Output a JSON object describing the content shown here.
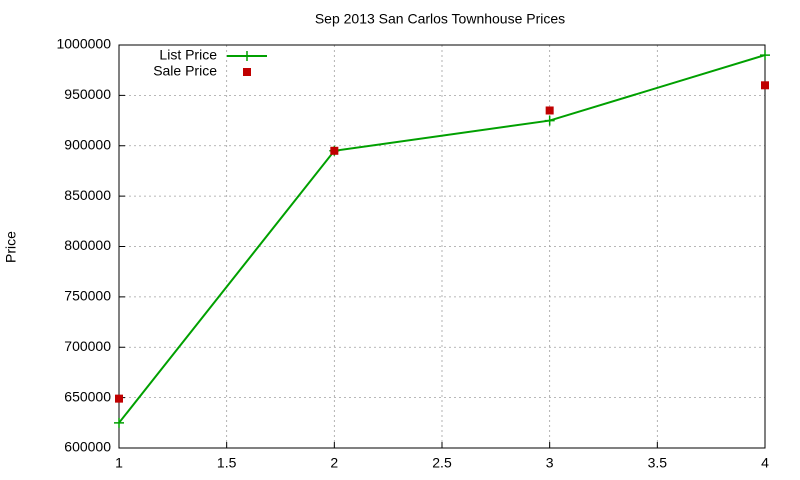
{
  "chart_data": {
    "type": "line",
    "title": "Sep 2013 San Carlos Townhouse Prices",
    "ylabel": "Price",
    "x": [
      1,
      2,
      3,
      4
    ],
    "series": [
      {
        "name": "List Price",
        "color": "#00a000",
        "mode": "linespoints",
        "values": [
          625000,
          895000,
          925000,
          990000
        ]
      },
      {
        "name": "Sale Price",
        "color": "#c00000",
        "mode": "points",
        "values": [
          649000,
          895000,
          935000,
          960000
        ]
      }
    ],
    "xlim": [
      1,
      4
    ],
    "xticks": [
      1,
      1.5,
      2,
      2.5,
      3,
      3.5,
      4
    ],
    "ylim": [
      600000,
      1000000
    ],
    "yticks": [
      600000,
      650000,
      700000,
      750000,
      800000,
      850000,
      900000,
      950000,
      1000000
    ],
    "grid": true,
    "legend": "top-left"
  }
}
